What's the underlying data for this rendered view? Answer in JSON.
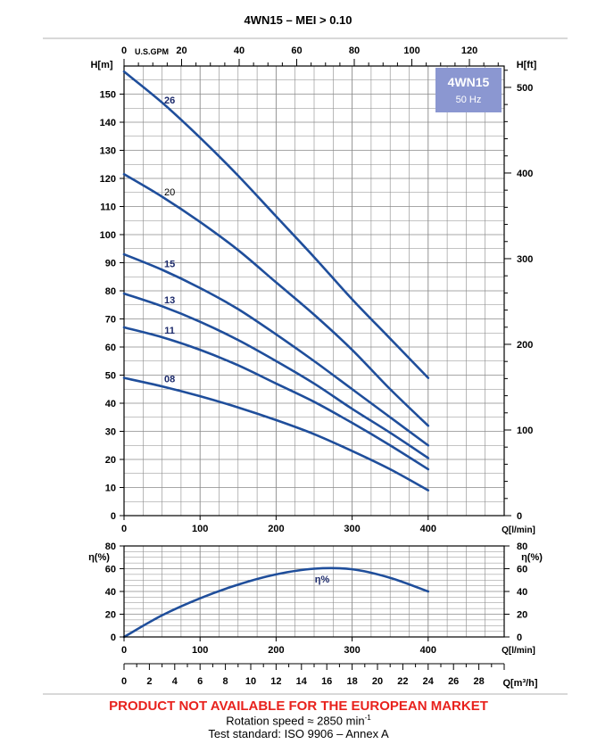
{
  "chart_data": [
    {
      "type": "line",
      "title": "4WN15 – MEI > 0.10",
      "badge": {
        "model": "4WN15",
        "frequency": "50 Hz",
        "color": "#8b97d1"
      },
      "curve_color": "#1f4e9b",
      "ylabel_left": "H[m]",
      "ylabel_right": "H[ft]",
      "xlabel_bottom": "Q[l/min]",
      "xlabel_top": "U.S.GPM",
      "xlim": [
        0,
        500
      ],
      "ylim": [
        0,
        160
      ],
      "x_ticks": [
        "0",
        "100",
        "200",
        "300",
        "400"
      ],
      "y_ticks_left": [
        "0",
        "10",
        "20",
        "30",
        "40",
        "50",
        "60",
        "70",
        "80",
        "90",
        "100",
        "110",
        "120",
        "130",
        "140",
        "150"
      ],
      "gpm_ticks": [
        "0",
        "20",
        "40",
        "60",
        "80",
        "100",
        "120"
      ],
      "ft_ticks": [
        "0",
        "100",
        "200",
        "300",
        "400",
        "500"
      ],
      "grid": true,
      "series": [
        {
          "name": "26",
          "x": [
            0,
            50,
            100,
            150,
            200,
            250,
            300,
            350,
            400
          ],
          "y": [
            158,
            147,
            134.5,
            121,
            106.5,
            92,
            77,
            63,
            49
          ]
        },
        {
          "name": "20",
          "x": [
            0,
            50,
            100,
            150,
            200,
            250,
            300,
            350,
            400
          ],
          "y": [
            121.5,
            113.5,
            104.5,
            94.5,
            83,
            71.5,
            59,
            45,
            32
          ]
        },
        {
          "name": "15",
          "x": [
            0,
            50,
            100,
            150,
            200,
            250,
            300,
            350,
            400
          ],
          "y": [
            93,
            87.5,
            81,
            73.5,
            64.5,
            55,
            45,
            35,
            25
          ]
        },
        {
          "name": "13",
          "x": [
            0,
            50,
            100,
            150,
            200,
            250,
            300,
            350,
            400
          ],
          "y": [
            79,
            74.5,
            69,
            62.5,
            55,
            47,
            38,
            29.5,
            20.5
          ]
        },
        {
          "name": "11",
          "x": [
            0,
            50,
            100,
            150,
            200,
            250,
            300,
            350,
            400
          ],
          "y": [
            67,
            63.5,
            59,
            53.5,
            47,
            40.5,
            33,
            25,
            16.5
          ]
        },
        {
          "name": "08",
          "x": [
            0,
            50,
            100,
            150,
            200,
            250,
            300,
            350,
            400
          ],
          "y": [
            49,
            46,
            42.5,
            38.5,
            34,
            29,
            23,
            16.5,
            9
          ]
        }
      ]
    },
    {
      "type": "line",
      "ylabel_left": "η(%)",
      "ylabel_right": "η(%)",
      "xlabel_bottom": "Q[l/min]",
      "xlabel_m3h": "Q[m³/h]",
      "xlim": [
        0,
        500
      ],
      "ylim": [
        0,
        80
      ],
      "x_ticks": [
        "0",
        "100",
        "200",
        "300",
        "400"
      ],
      "y_ticks": [
        "0",
        "20",
        "40",
        "60",
        "80"
      ],
      "m3h_ticks": [
        "0",
        "2",
        "4",
        "6",
        "8",
        "10",
        "12",
        "14",
        "16",
        "18",
        "20",
        "22",
        "24",
        "26",
        "28"
      ],
      "grid": true,
      "series": [
        {
          "name": "η%",
          "x": [
            0,
            50,
            100,
            150,
            200,
            250,
            300,
            350,
            400
          ],
          "y": [
            0,
            19,
            34,
            46,
            55,
            60,
            59.5,
            52,
            40
          ]
        }
      ]
    }
  ],
  "footer": {
    "warning": "PRODUCT NOT AVAILABLE FOR THE EUROPEAN MARKET",
    "rotation_label": "Rotation speed ≈ 2850 min",
    "rotation_exp": "-1",
    "standard": "Test standard: ISO 9906 – Annex A"
  }
}
